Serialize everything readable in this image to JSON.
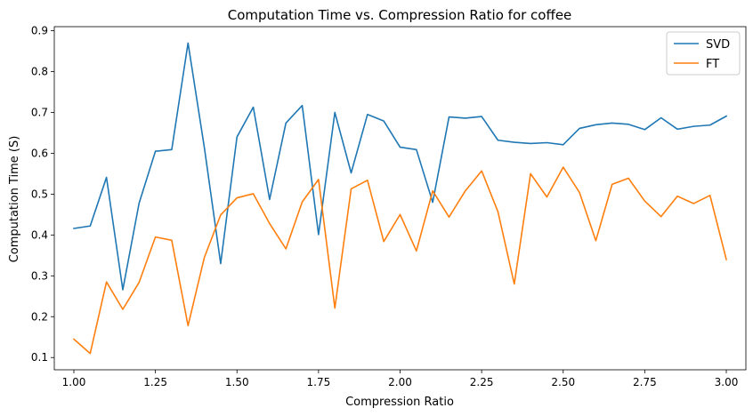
{
  "chart_data": {
    "type": "line",
    "title": "Computation Time vs. Compression Ratio for coffee",
    "xlabel": "Compression Ratio",
    "ylabel": "Computation Time (S)",
    "xlim": [
      0.94,
      3.06
    ],
    "ylim": [
      0.07,
      0.91
    ],
    "xticks": [
      1.0,
      1.25,
      1.5,
      1.75,
      2.0,
      2.25,
      2.5,
      2.75,
      3.0
    ],
    "xtick_labels": [
      "1.00",
      "1.25",
      "1.50",
      "1.75",
      "2.00",
      "2.25",
      "2.50",
      "2.75",
      "3.00"
    ],
    "yticks": [
      0.1,
      0.2,
      0.3,
      0.4,
      0.5,
      0.6,
      0.7,
      0.8,
      0.9
    ],
    "ytick_labels": [
      "0.1",
      "0.2",
      "0.3",
      "0.4",
      "0.5",
      "0.6",
      "0.7",
      "0.8",
      "0.9"
    ],
    "grid": false,
    "legend_position": "top-right",
    "x": [
      1.0,
      1.05,
      1.1,
      1.15,
      1.2,
      1.25,
      1.3,
      1.35,
      1.4,
      1.45,
      1.5,
      1.55,
      1.6,
      1.65,
      1.7,
      1.75,
      1.8,
      1.85,
      1.9,
      1.95,
      2.0,
      2.05,
      2.1,
      2.15,
      2.2,
      2.25,
      2.3,
      2.35,
      2.4,
      2.45,
      2.5,
      2.55,
      2.6,
      2.65,
      2.7,
      2.75,
      2.8,
      2.85,
      2.9,
      2.95,
      3.0
    ],
    "series": [
      {
        "name": "SVD",
        "color": "#1f77b4",
        "values": [
          0.416,
          0.422,
          0.541,
          0.266,
          0.478,
          0.605,
          0.609,
          0.87,
          0.614,
          0.33,
          0.64,
          0.713,
          0.487,
          0.674,
          0.717,
          0.401,
          0.7,
          0.552,
          0.695,
          0.679,
          0.615,
          0.609,
          0.48,
          0.689,
          0.686,
          0.69,
          0.632,
          0.627,
          0.624,
          0.626,
          0.621,
          0.661,
          0.67,
          0.674,
          0.671,
          0.658,
          0.687,
          0.659,
          0.666,
          0.669,
          0.691
        ]
      },
      {
        "name": "FT",
        "color": "#ff7f0e",
        "values": [
          0.145,
          0.11,
          0.285,
          0.218,
          0.284,
          0.395,
          0.387,
          0.178,
          0.345,
          0.449,
          0.491,
          0.501,
          0.428,
          0.366,
          0.481,
          0.536,
          0.221,
          0.513,
          0.534,
          0.384,
          0.45,
          0.361,
          0.508,
          0.444,
          0.508,
          0.557,
          0.457,
          0.28,
          0.55,
          0.493,
          0.566,
          0.504,
          0.386,
          0.524,
          0.539,
          0.483,
          0.445,
          0.495,
          0.477,
          0.497,
          0.34
        ]
      }
    ]
  }
}
